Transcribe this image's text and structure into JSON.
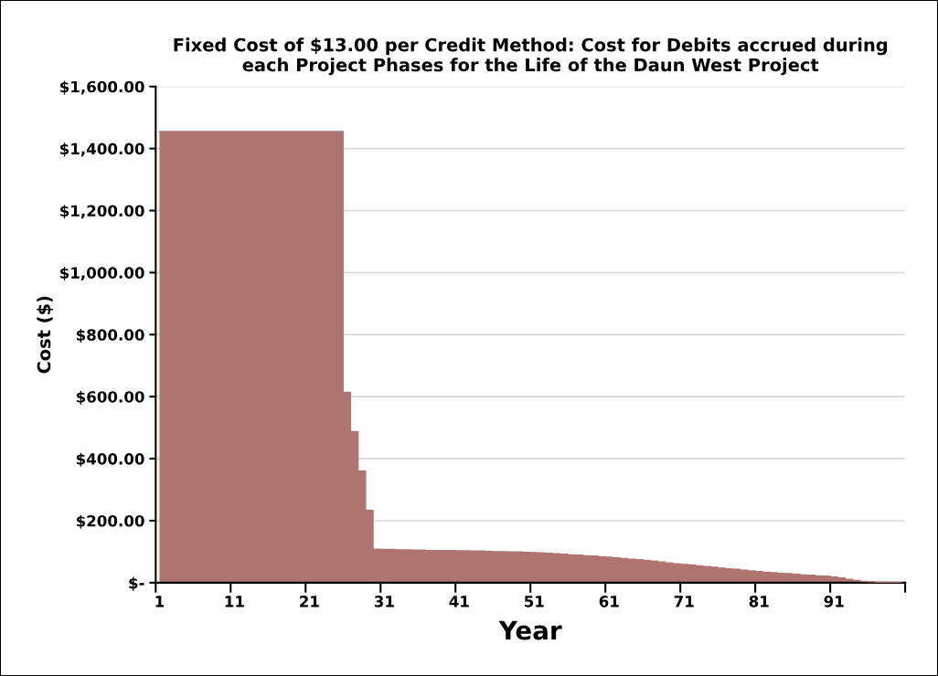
{
  "chart_data": {
    "type": "area",
    "title": "Fixed Cost of $13.00 per Credit Method: Cost for Debits accrued during\neach Project Phases for the Life of the Daun West Project",
    "xlabel": "Year",
    "ylabel": "Cost ($)",
    "categories": [
      "1",
      null,
      null,
      null,
      null,
      null,
      null,
      null,
      null,
      null,
      "11",
      null,
      null,
      null,
      null,
      null,
      null,
      null,
      null,
      null,
      "21",
      null,
      null,
      null,
      null,
      null,
      null,
      null,
      null,
      null,
      "31",
      null,
      null,
      null,
      null,
      null,
      null,
      null,
      null,
      null,
      "41",
      null,
      null,
      null,
      null,
      null,
      null,
      null,
      null,
      null,
      "51",
      null,
      null,
      null,
      null,
      null,
      null,
      null,
      null,
      null,
      "61",
      null,
      null,
      null,
      null,
      null,
      null,
      null,
      null,
      null,
      "71",
      null,
      null,
      null,
      null,
      null,
      null,
      null,
      null,
      null,
      "81",
      null,
      null,
      null,
      null,
      null,
      null,
      null,
      null,
      null,
      "91",
      null,
      null,
      null,
      null,
      null,
      null,
      null,
      null,
      null
    ],
    "values": [
      1455,
      1455,
      1455,
      1455,
      1455,
      1455,
      1455,
      1455,
      1455,
      1455,
      1455,
      1455,
      1455,
      1455,
      1455,
      1455,
      1455,
      1455,
      1455,
      1455,
      1455,
      1455,
      1455,
      1455,
      1455,
      614,
      487,
      360,
      233,
      108,
      107,
      107,
      106,
      106,
      105,
      105,
      104,
      104,
      104,
      104,
      103,
      103,
      102,
      102,
      101,
      100,
      100,
      99,
      99,
      98,
      97,
      96,
      95,
      93,
      92,
      90,
      89,
      87,
      86,
      84,
      82,
      80,
      78,
      76,
      74,
      72,
      70,
      67,
      64,
      61,
      59,
      57,
      54,
      52,
      50,
      47,
      45,
      43,
      40,
      38,
      36,
      34,
      32,
      30,
      29,
      27,
      25,
      24,
      22,
      21,
      18,
      15,
      11,
      7,
      4,
      3,
      2,
      1,
      1,
      0
    ],
    "color": "#b07470",
    "ylim": [
      0,
      1600
    ],
    "yticks": [
      {
        "value": 0,
        "label": "$-"
      },
      {
        "value": 200,
        "label": "$200.00"
      },
      {
        "value": 400,
        "label": "$400.00"
      },
      {
        "value": 600,
        "label": "$600.00"
      },
      {
        "value": 800,
        "label": "$800.00"
      },
      {
        "value": 1000,
        "label": "$1,000.00"
      },
      {
        "value": 1200,
        "label": "$1,200.00"
      },
      {
        "value": 1400,
        "label": "$1,400.00"
      },
      {
        "value": 1600,
        "label": "$1,600.00"
      }
    ],
    "grid": "y",
    "legend": false
  }
}
